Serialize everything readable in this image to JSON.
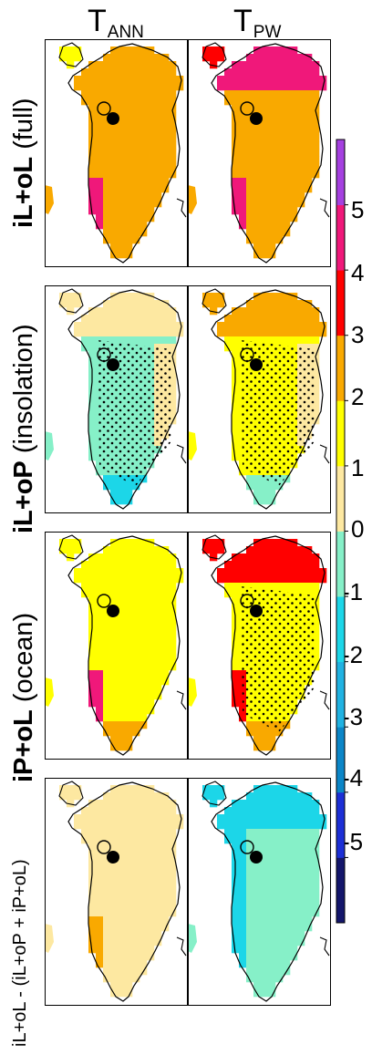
{
  "columns": [
    {
      "main": "T",
      "sub": "ANN"
    },
    {
      "main": "T",
      "sub": "PW"
    }
  ],
  "rows": [
    {
      "bold": "iL+oL",
      "rest": " (full)"
    },
    {
      "bold": "iL+oP",
      "rest": " (insolation)"
    },
    {
      "bold": "iP+oL",
      "rest": " (ocean)"
    },
    {
      "bold": "",
      "rest": "iL+oL - (iL+oP + iP+oL)"
    }
  ],
  "colorbar": {
    "levels": [
      -6,
      -5,
      -4,
      -3,
      -2,
      -1,
      0,
      1,
      2,
      3,
      4,
      5,
      6
    ],
    "tick_labels": [
      "-5",
      "-4",
      "-3",
      "-2",
      "-1",
      "0",
      "1",
      "2",
      "3",
      "4",
      "5"
    ],
    "colors": [
      "#14166b",
      "#1c2fd6",
      "#0b86c8",
      "#20b2e2",
      "#1cd6e8",
      "#86f0c8",
      "#fde8a1",
      "#ffff00",
      "#f9a900",
      "#ff0000",
      "#f0187a",
      "#a540e0"
    ]
  },
  "colors": {
    "sea_fill": "#ffffff",
    "panel_border": "#000000",
    "coast": "#000000",
    "stipple": "#000000"
  },
  "chart_data": [
    {
      "type": "heatmap",
      "row": "iL+oL (full)",
      "variable": "T_ANN",
      "dominant_range": [
        2,
        3
      ],
      "regions": [
        {
          "area": "north",
          "range": [
            2,
            3
          ]
        },
        {
          "area": "northwest",
          "range": [
            1,
            2
          ]
        },
        {
          "area": "south-west margin",
          "range": [
            3,
            5
          ]
        }
      ],
      "stippled": false
    },
    {
      "type": "heatmap",
      "row": "iL+oL (full)",
      "variable": "T_PW",
      "dominant_range": [
        2,
        3
      ],
      "regions": [
        {
          "area": "north",
          "range": [
            3,
            5
          ]
        },
        {
          "area": "northwest",
          "range": [
            3,
            4
          ]
        },
        {
          "area": "south-west margin",
          "range": [
            3,
            5
          ]
        }
      ],
      "stippled": false
    },
    {
      "type": "heatmap",
      "row": "iL+oP (insolation)",
      "variable": "T_ANN",
      "dominant_range": [
        -1,
        0
      ],
      "regions": [
        {
          "area": "north",
          "range": [
            0,
            1
          ]
        },
        {
          "area": "east",
          "range": [
            0,
            1
          ]
        },
        {
          "area": "south",
          "range": [
            -2,
            -1
          ]
        }
      ],
      "stippled": true
    },
    {
      "type": "heatmap",
      "row": "iL+oP (insolation)",
      "variable": "T_PW",
      "dominant_range": [
        1,
        2
      ],
      "regions": [
        {
          "area": "north",
          "range": [
            2,
            3
          ]
        },
        {
          "area": "east",
          "range": [
            0,
            1
          ]
        },
        {
          "area": "south",
          "range": [
            -1,
            0
          ]
        }
      ],
      "stippled": true
    },
    {
      "type": "heatmap",
      "row": "iP+oL (ocean)",
      "variable": "T_ANN",
      "dominant_range": [
        1,
        2
      ],
      "regions": [
        {
          "area": "north",
          "range": [
            1,
            2
          ]
        },
        {
          "area": "south",
          "range": [
            2,
            3
          ]
        },
        {
          "area": "south-west margin",
          "range": [
            3,
            5
          ]
        }
      ],
      "stippled": false
    },
    {
      "type": "heatmap",
      "row": "iP+oL (ocean)",
      "variable": "T_PW",
      "dominant_range": [
        1,
        2
      ],
      "regions": [
        {
          "area": "north",
          "range": [
            3,
            4
          ]
        },
        {
          "area": "south",
          "range": [
            2,
            3
          ]
        },
        {
          "area": "south-west margin",
          "range": [
            3,
            4
          ]
        }
      ],
      "stippled": true
    },
    {
      "type": "heatmap",
      "row": "iL+oL - (iL+oP + iP+oL)",
      "variable": "T_ANN",
      "dominant_range": [
        0,
        1
      ],
      "regions": [
        {
          "area": "north",
          "range": [
            0,
            1
          ]
        },
        {
          "area": "south-west margin",
          "range": [
            1,
            3
          ]
        }
      ],
      "stippled": false
    },
    {
      "type": "heatmap",
      "row": "iL+oL - (iL+oP + iP+oL)",
      "variable": "T_PW",
      "dominant_range": [
        -1,
        0
      ],
      "regions": [
        {
          "area": "north",
          "range": [
            -2,
            -1
          ]
        },
        {
          "area": "west",
          "range": [
            -2,
            -1
          ]
        },
        {
          "area": "south",
          "range": [
            -1,
            0
          ]
        }
      ],
      "stippled": false
    }
  ]
}
